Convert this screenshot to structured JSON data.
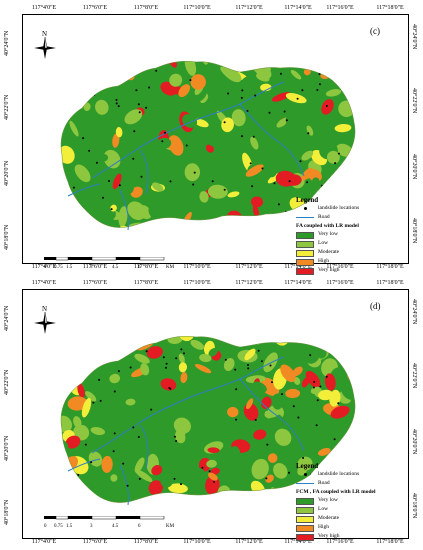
{
  "colors": {
    "very_low": "#2e9a2a",
    "low": "#8dc63f",
    "moderate": "#f2ee3a",
    "high": "#f28a24",
    "very_high": "#e31b23",
    "road": "#2e7fc2",
    "landslide": "#000000"
  },
  "x_ticks": [
    "117°4'0\"E",
    "117°6'0\"E",
    "117°8'0\"E",
    "117°10'0\"E",
    "117°12'0\"E",
    "117°14'0\"E",
    "117°16'0\"E",
    "117°18'0\"E"
  ],
  "y_ticks": [
    "40°24'0\"N",
    "40°22'0\"N",
    "40°20'0\"N",
    "40°18'0\"N"
  ],
  "compass_label": "N",
  "scale": {
    "numbers": [
      "0",
      "0.75",
      "1.5",
      "3",
      "4.5",
      "6"
    ],
    "unit": "KM"
  },
  "panels": [
    {
      "label": "(c)",
      "legend_title": "Legend",
      "landslide_label": "landslide locations",
      "road_label": "Road",
      "model_label": "FA coupled with LR model",
      "classes": [
        "Very low",
        "Low",
        "Moderate",
        "High",
        "Very high"
      ]
    },
    {
      "label": "(d)",
      "legend_title": "Legend",
      "landslide_label": "landslide locations",
      "road_label": "Road",
      "model_label": "FCM , FA coupled with LR model",
      "classes": [
        "Very low",
        "Low",
        "Moderate",
        "High",
        "Very high"
      ]
    }
  ]
}
